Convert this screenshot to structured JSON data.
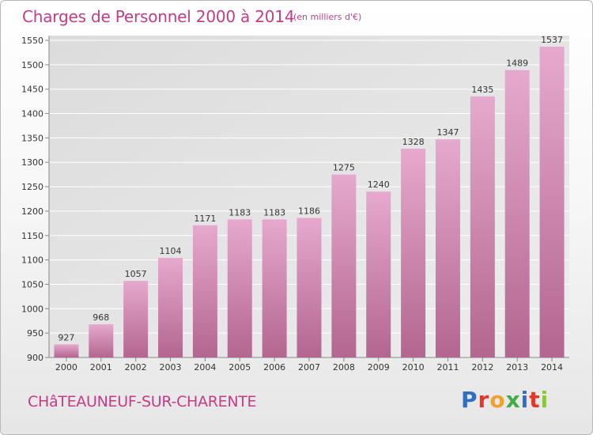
{
  "header": {
    "title": "Charges de Personnel 2000 à 2014",
    "unit": "(en milliers d'€)"
  },
  "footer": {
    "commune": "CHâTEAUNEUF-SUR-CHARENTE",
    "logo": "Proxiti"
  },
  "chart_data": {
    "type": "bar",
    "title": "Charges de Personnel 2000 à 2014",
    "subtitle": "(en milliers d'€)",
    "categories": [
      "2000",
      "2001",
      "2002",
      "2003",
      "2004",
      "2005",
      "2006",
      "2007",
      "2008",
      "2009",
      "2010",
      "2011",
      "2012",
      "2013",
      "2014"
    ],
    "values": [
      927,
      968,
      1057,
      1104,
      1171,
      1183,
      1183,
      1186,
      1275,
      1240,
      1328,
      1347,
      1435,
      1489,
      1537
    ],
    "ylim": [
      900,
      1550
    ],
    "yticks": [
      900,
      950,
      1000,
      1050,
      1100,
      1150,
      1200,
      1250,
      1300,
      1350,
      1400,
      1450,
      1500,
      1550
    ],
    "grid": true,
    "bar_color_top": "#e6a9ce",
    "bar_color_bottom": "#b3668f",
    "label_color": "#333333"
  }
}
